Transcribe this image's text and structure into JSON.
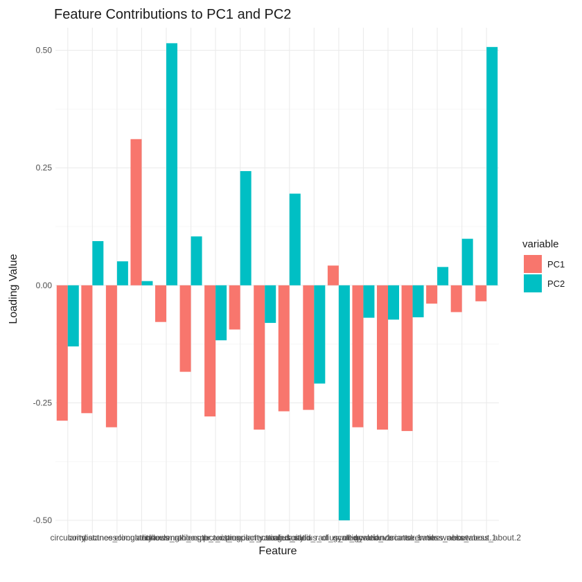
{
  "chart_data": {
    "type": "bar",
    "title": "Feature Contributions to PC1 and PC2",
    "xlabel": "Feature",
    "ylabel": "Loading Value",
    "ylim": [
      -0.5,
      0.52
    ],
    "yticks": [
      -0.5,
      -0.25,
      0,
      0.25,
      0.5
    ],
    "ytick_labels": [
      "-0.50",
      "-0.25",
      "0.00",
      "0.25",
      "0.50"
    ],
    "grid": true,
    "legend": {
      "title": "variable",
      "position": "right"
    },
    "categories": [
      "circularity",
      "compactness",
      "distance_circularity",
      "elongatedness",
      "hollows_ratio",
      "max.length_aspect_ratio",
      "max.length_rectangularity",
      "pr.axis_aspect_ratio",
      "pr.axis_rectangularity",
      "radius_ratio",
      "scaled_radius_of_gyration",
      "scaled_radius_of_gyration.1",
      "scaled_variance",
      "scaled_variance.1",
      "scatter_ratio",
      "skewness_about",
      "skewness_about.1",
      "skewness_about.2"
    ],
    "series": [
      {
        "name": "PC1",
        "color": "#F8766D",
        "values": [
          -0.288,
          -0.272,
          -0.302,
          0.311,
          -0.078,
          -0.184,
          -0.279,
          -0.094,
          -0.307,
          -0.268,
          -0.265,
          0.042,
          -0.302,
          -0.307,
          -0.31,
          -0.039,
          -0.057,
          -0.034
        ]
      },
      {
        "name": "PC2",
        "color": "#00BFC4",
        "values": [
          -0.13,
          0.094,
          0.051,
          0.009,
          0.515,
          0.104,
          -0.117,
          0.243,
          -0.08,
          0.195,
          -0.209,
          -0.5,
          -0.069,
          -0.073,
          -0.068,
          0.039,
          0.099,
          0.507
        ]
      }
    ]
  }
}
